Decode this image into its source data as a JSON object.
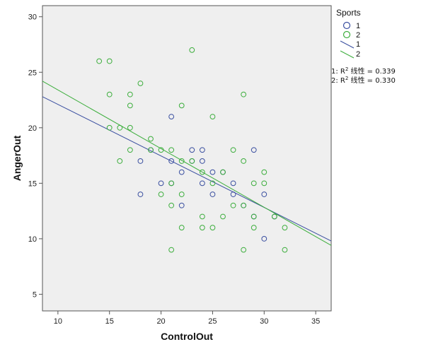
{
  "chart_data": {
    "type": "scatter",
    "xlabel": "ControlOut",
    "ylabel": "AngerOut",
    "xlim": [
      8.5,
      36.5
    ],
    "ylim": [
      3.5,
      31
    ],
    "xticks": [
      10,
      15,
      20,
      25,
      30,
      35
    ],
    "yticks": [
      5,
      10,
      15,
      20,
      25,
      30
    ],
    "grid": false,
    "background": "#efefef",
    "legend": {
      "title": "Sports",
      "position": "right",
      "entries": [
        {
          "label": "1",
          "kind": "marker",
          "color": "#3a4fa0"
        },
        {
          "label": "2",
          "kind": "marker",
          "color": "#3dae3d"
        },
        {
          "label": "1",
          "kind": "line",
          "color": "#3a4fa0"
        },
        {
          "label": "2",
          "kind": "line",
          "color": "#3dae3d"
        }
      ]
    },
    "fit_labels": [
      {
        "prefix": "1: R",
        "sup": "2",
        "suffix": " 线性 = 0.339"
      },
      {
        "prefix": "2: R",
        "sup": "2",
        "suffix": " 线性 = 0.330"
      }
    ],
    "series": [
      {
        "name": "1",
        "color": "#3a4fa0",
        "fit": {
          "x0": 8.5,
          "y0": 22.8,
          "x1": 36.5,
          "y1": 9.8
        },
        "points": [
          [
            18,
            17
          ],
          [
            18,
            14
          ],
          [
            19,
            18
          ],
          [
            20,
            15
          ],
          [
            21,
            21
          ],
          [
            21,
            17
          ],
          [
            21,
            15
          ],
          [
            22,
            16
          ],
          [
            22,
            13
          ],
          [
            23,
            18
          ],
          [
            23,
            17
          ],
          [
            24,
            18
          ],
          [
            24,
            17
          ],
          [
            24,
            15
          ],
          [
            25,
            16
          ],
          [
            25,
            14
          ],
          [
            26,
            16
          ],
          [
            27,
            15
          ],
          [
            27,
            14
          ],
          [
            28,
            13
          ],
          [
            29,
            18
          ],
          [
            29,
            12
          ],
          [
            30,
            14
          ],
          [
            30,
            10
          ],
          [
            31,
            12
          ]
        ]
      },
      {
        "name": "2",
        "color": "#3dae3d",
        "fit": {
          "x0": 8.5,
          "y0": 24.2,
          "x1": 36.5,
          "y1": 9.4
        },
        "points": [
          [
            14,
            26
          ],
          [
            15,
            26
          ],
          [
            15,
            23
          ],
          [
            15,
            20
          ],
          [
            16,
            20
          ],
          [
            16,
            17
          ],
          [
            17,
            23
          ],
          [
            17,
            22
          ],
          [
            17,
            20
          ],
          [
            17,
            18
          ],
          [
            18,
            24
          ],
          [
            19,
            19
          ],
          [
            19,
            18
          ],
          [
            20,
            18
          ],
          [
            20,
            14
          ],
          [
            21,
            18
          ],
          [
            21,
            15
          ],
          [
            21,
            13
          ],
          [
            21,
            9
          ],
          [
            22,
            22
          ],
          [
            22,
            17
          ],
          [
            22,
            14
          ],
          [
            22,
            11
          ],
          [
            23,
            27
          ],
          [
            23,
            17
          ],
          [
            24,
            16
          ],
          [
            24,
            12
          ],
          [
            24,
            11
          ],
          [
            25,
            21
          ],
          [
            25,
            15
          ],
          [
            25,
            11
          ],
          [
            26,
            16
          ],
          [
            26,
            12
          ],
          [
            27,
            18
          ],
          [
            27,
            13
          ],
          [
            28,
            23
          ],
          [
            28,
            17
          ],
          [
            28,
            13
          ],
          [
            28,
            9
          ],
          [
            29,
            15
          ],
          [
            29,
            12
          ],
          [
            29,
            11
          ],
          [
            30,
            16
          ],
          [
            30,
            15
          ],
          [
            31,
            12
          ],
          [
            32,
            11
          ],
          [
            32,
            9
          ]
        ]
      }
    ]
  }
}
